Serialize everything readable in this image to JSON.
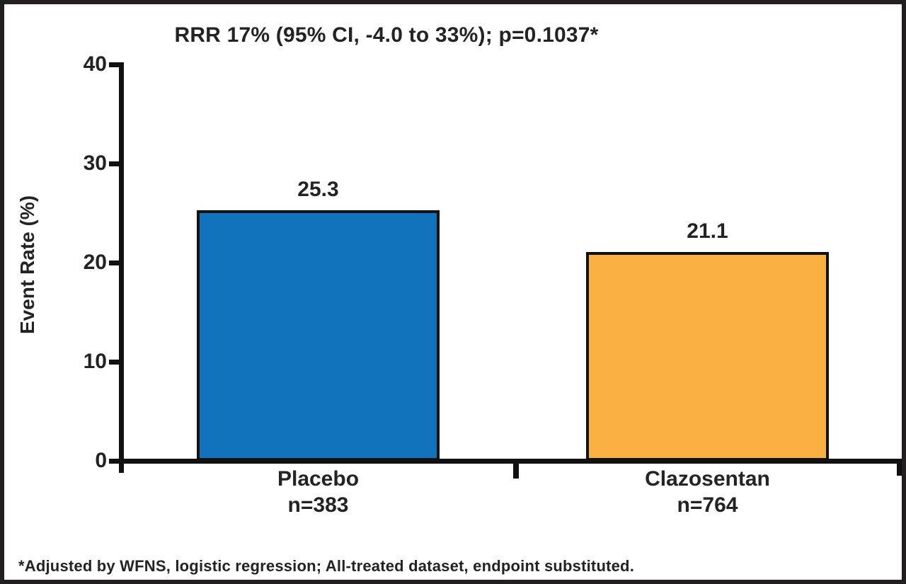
{
  "chart_data": {
    "type": "bar",
    "title": "RRR 17% (95% CI, -4.0 to 33%); p=0.1037*",
    "ylabel": "Event Rate (%)",
    "xlabel": "",
    "ylim": [
      0,
      40
    ],
    "yticks": [
      0,
      10,
      20,
      30,
      40
    ],
    "grid": false,
    "legend": false,
    "categories": [
      "Placebo",
      "Clazosentan"
    ],
    "series": [
      {
        "name": "Event Rate (%)",
        "values": [
          25.3,
          21.1
        ]
      }
    ],
    "bars": [
      {
        "label": "Placebo",
        "sublabel": "n=383",
        "value": 25.3,
        "value_label": "25.3",
        "color": "#1173BC"
      },
      {
        "label": "Clazosentan",
        "sublabel": "n=764",
        "value": 21.1,
        "value_label": "21.1",
        "color": "#FAB040"
      }
    ],
    "footnote": "*Adjusted by WFNS, logistic regression; All-treated dataset, endpoint substituted."
  },
  "colors": {
    "placebo_bar": "#1173BC",
    "clazosentan_bar": "#FAB040",
    "axis": "#111111",
    "text": "#232323",
    "frame_border": "#231f20",
    "background": "#ffffff"
  }
}
